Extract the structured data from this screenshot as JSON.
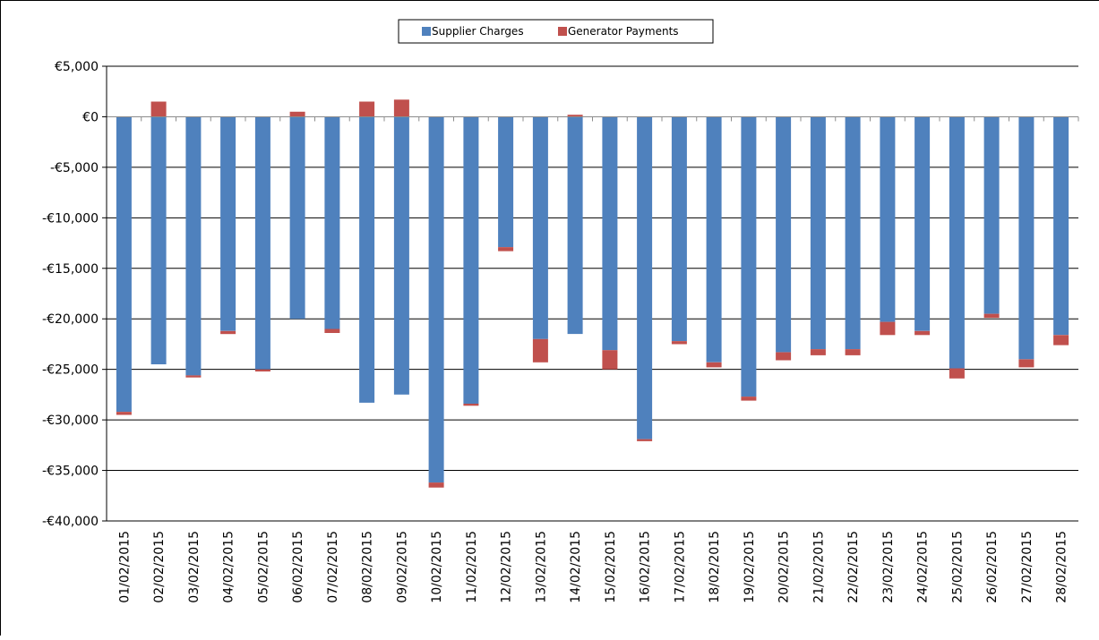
{
  "chart_data": {
    "type": "bar",
    "stacked": true,
    "categories": [
      "01/02/2015",
      "02/02/2015",
      "03/02/2015",
      "04/02/2015",
      "05/02/2015",
      "06/02/2015",
      "07/02/2015",
      "08/02/2015",
      "09/02/2015",
      "10/02/2015",
      "11/02/2015",
      "12/02/2015",
      "13/02/2015",
      "14/02/2015",
      "15/02/2015",
      "16/02/2015",
      "17/02/2015",
      "18/02/2015",
      "19/02/2015",
      "20/02/2015",
      "21/02/2015",
      "22/02/2015",
      "23/02/2015",
      "24/02/2015",
      "25/02/2015",
      "26/02/2015",
      "27/02/2015",
      "28/02/2015"
    ],
    "series": [
      {
        "name": "Supplier Charges",
        "color": "#4F81BD",
        "values": [
          -29200,
          -24500,
          -25600,
          -21200,
          -25000,
          -20000,
          -21000,
          -28300,
          -27500,
          -36200,
          -28400,
          -12900,
          -22000,
          -21500,
          -23100,
          -31900,
          -22200,
          -24300,
          -27700,
          -23300,
          -23000,
          -23000,
          -20300,
          -21200,
          -24900,
          -19500,
          -24000,
          -21600
        ]
      },
      {
        "name": "Generator Payments",
        "color": "#C0504D",
        "values": [
          -300,
          1500,
          -200,
          -300,
          -200,
          500,
          -400,
          1500,
          1700,
          -500,
          -200,
          -400,
          -2300,
          200,
          -1900,
          -200,
          -300,
          -500,
          -400,
          -800,
          -600,
          -600,
          -1300,
          -400,
          -1000,
          -400,
          -800,
          -1000
        ]
      }
    ],
    "ylim": [
      -40000,
      5000
    ],
    "yticks": [
      5000,
      0,
      -5000,
      -10000,
      -15000,
      -20000,
      -25000,
      -30000,
      -35000,
      -40000
    ],
    "ytick_labels": [
      "€5,000",
      "€0",
      "-€5,000",
      "-€10,000",
      "-€15,000",
      "-€20,000",
      "-€25,000",
      "-€30,000",
      "-€35,000",
      "-€40,000"
    ],
    "grid": true,
    "legend_position": "top-center",
    "title": "",
    "xlabel": "",
    "ylabel": ""
  }
}
